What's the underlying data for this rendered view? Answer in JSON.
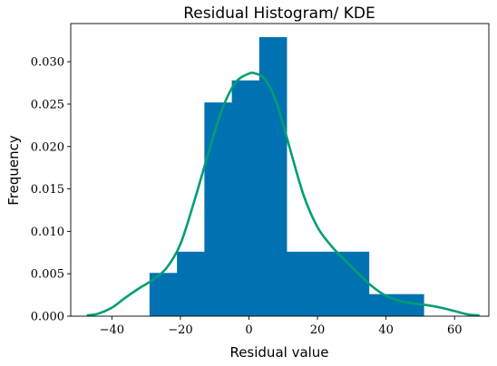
{
  "chart_data": {
    "type": "bar",
    "title": "Residual Histogram/ KDE",
    "xlabel": "Residual value",
    "ylabel": "Frequency",
    "xlim": [
      -52,
      70
    ],
    "ylim": [
      0,
      0.0345
    ],
    "x_ticks": [
      -40,
      -20,
      0,
      20,
      40,
      60
    ],
    "y_ticks": [
      0.0,
      0.005,
      0.01,
      0.015,
      0.02,
      0.025,
      0.03
    ],
    "grid": false,
    "colors": {
      "bars": "#0072b2",
      "kde": "#009e73"
    },
    "histogram": {
      "bin_edges": [
        -29,
        -21,
        -13,
        -5,
        3,
        11,
        19,
        27,
        35,
        43,
        51
      ],
      "values": [
        0.0051,
        0.0076,
        0.0252,
        0.0278,
        0.0329,
        0.0076,
        0.0076,
        0.0076,
        0.0026,
        0.0026
      ]
    },
    "kde": {
      "x": [
        -47,
        -44,
        -40,
        -36,
        -32,
        -28,
        -24,
        -20,
        -16,
        -12,
        -8,
        -4,
        0,
        2,
        4,
        6,
        8,
        10,
        12,
        16,
        20,
        24,
        28,
        32,
        36,
        40,
        44,
        48,
        52,
        56,
        60,
        64,
        67
      ],
      "y": [
        0.0001,
        0.0003,
        0.001,
        0.0022,
        0.0033,
        0.0043,
        0.0057,
        0.0085,
        0.0135,
        0.019,
        0.0242,
        0.0275,
        0.0286,
        0.0286,
        0.0282,
        0.0271,
        0.0252,
        0.0226,
        0.0197,
        0.0142,
        0.0105,
        0.0083,
        0.0066,
        0.005,
        0.0035,
        0.0024,
        0.0018,
        0.0015,
        0.0013,
        0.001,
        0.0006,
        0.0002,
        0.0001
      ]
    }
  }
}
